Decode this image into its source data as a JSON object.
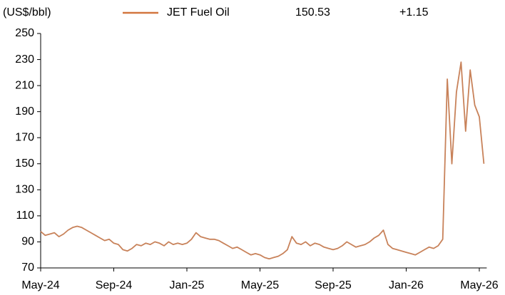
{
  "chart_data": {
    "type": "line",
    "y_label": "(US$/bbl)",
    "latest_value": 150.53,
    "change_label": "+1.15",
    "categories": [
      "May-24",
      null,
      null,
      null,
      null,
      null,
      null,
      null,
      null,
      null,
      null,
      null,
      null,
      null,
      null,
      null,
      "Sep-24",
      null,
      null,
      null,
      null,
      null,
      null,
      null,
      null,
      null,
      null,
      null,
      null,
      null,
      null,
      null,
      "Jan-25",
      null,
      null,
      null,
      null,
      null,
      null,
      null,
      null,
      null,
      null,
      null,
      null,
      null,
      null,
      null,
      "May-25",
      null,
      null,
      null,
      null,
      null,
      null,
      null,
      null,
      null,
      null,
      null,
      null,
      null,
      null,
      null,
      "Sep-25",
      null,
      null,
      null,
      null,
      null,
      null,
      null,
      null,
      null,
      null,
      null,
      null,
      null,
      null,
      null,
      "Jan-26",
      null,
      null,
      null,
      null,
      null,
      null,
      null,
      null,
      null,
      null,
      null,
      null,
      null,
      null,
      null,
      "May-26",
      null
    ],
    "series": [
      {
        "name": "JET Fuel Oil",
        "color": "#c8825a",
        "values": [
          98,
          95,
          96,
          97,
          94,
          96,
          99,
          101,
          102,
          101,
          99,
          97,
          95,
          93,
          91,
          92,
          89,
          88,
          84,
          83,
          85,
          88,
          87,
          89,
          88,
          90,
          89,
          87,
          90,
          88,
          89,
          88,
          89,
          92,
          97,
          94,
          93,
          92,
          92,
          91,
          89,
          87,
          85,
          86,
          84,
          82,
          80,
          81,
          80,
          78,
          77,
          78,
          79,
          81,
          84,
          94,
          89,
          88,
          90,
          87,
          89,
          88,
          86,
          85,
          84,
          85,
          87,
          90,
          88,
          86,
          87,
          88,
          90,
          93,
          95,
          99,
          88,
          85,
          84,
          83,
          82,
          81,
          80,
          82,
          84,
          86,
          85,
          87,
          92,
          215,
          150,
          205,
          228,
          175,
          222,
          195,
          186,
          150
        ]
      }
    ],
    "ylim": [
      70,
      250
    ],
    "yticks": [
      70,
      90,
      110,
      130,
      150,
      170,
      190,
      210,
      230,
      250
    ],
    "grid": false
  }
}
